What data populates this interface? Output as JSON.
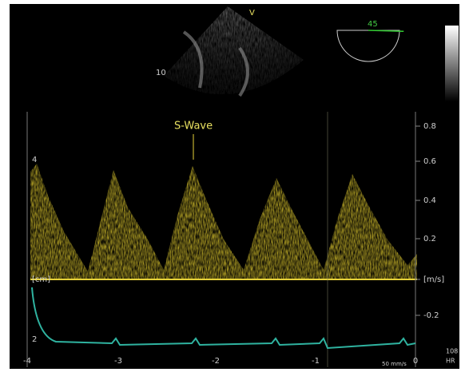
{
  "echo_labels": {
    "marker": "V",
    "left_number": "10",
    "angle": "45"
  },
  "annotation": "S-Wave",
  "right_axis": [
    "0.8",
    "0.6",
    "0.4",
    "0.2",
    "[m/s]",
    "-0.2"
  ],
  "left_axis": [
    "4",
    "[cm]",
    "2"
  ],
  "time_axis": [
    "-4",
    "-3",
    "-2",
    "-1",
    "0"
  ],
  "sweep_speed": "50 mm/s",
  "heart_rate": {
    "value": "108",
    "unit": "HR"
  }
}
